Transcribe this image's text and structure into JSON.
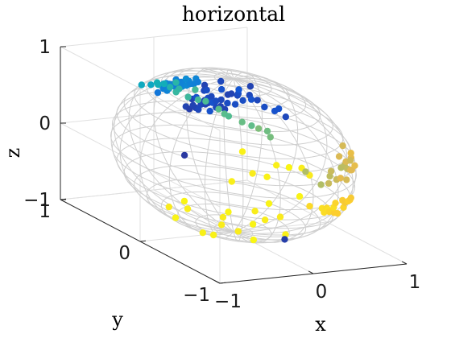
{
  "chart_data": {
    "type": "scatter",
    "title": "horizontal",
    "xlabel": "x",
    "ylabel": "y",
    "zlabel": "z",
    "xlim": [
      -1,
      1
    ],
    "ylim": [
      -1,
      1
    ],
    "zlim": [
      -1,
      1
    ],
    "x_ticks": [
      "−1",
      "0",
      "1"
    ],
    "y_ticks": [
      "−1",
      "0",
      "1"
    ],
    "z_ticks": [
      "−1",
      "0",
      "1"
    ],
    "grid": true,
    "reference_surface": "unit sphere wireframe",
    "colormap": "parula",
    "colors": {
      "sphere": "#cfcfcf",
      "box": "#e0e0e0",
      "axis": "#262626"
    },
    "points": [
      {
        "x": 0.36,
        "y": 0.93,
        "z": 0.1,
        "c": 0.05
      },
      {
        "x": 0.42,
        "y": 0.9,
        "z": 0.12,
        "c": 0.06
      },
      {
        "x": 0.47,
        "y": 0.87,
        "z": 0.15,
        "c": 0.05
      },
      {
        "x": 0.52,
        "y": 0.83,
        "z": 0.19,
        "c": 0.07
      },
      {
        "x": 0.33,
        "y": 0.94,
        "z": 0.05,
        "c": 0.04
      },
      {
        "x": 0.4,
        "y": 0.91,
        "z": 0.05,
        "c": 0.06
      },
      {
        "x": 0.45,
        "y": 0.88,
        "z": 0.13,
        "c": 0.05
      },
      {
        "x": 0.5,
        "y": 0.85,
        "z": 0.16,
        "c": 0.08
      },
      {
        "x": 0.38,
        "y": 0.92,
        "z": 0.07,
        "c": 0.05
      },
      {
        "x": 0.55,
        "y": 0.8,
        "z": 0.22,
        "c": 0.06
      },
      {
        "x": 0.6,
        "y": 0.78,
        "z": 0.18,
        "c": 0.07
      },
      {
        "x": 0.58,
        "y": 0.75,
        "z": 0.31,
        "c": 0.05
      },
      {
        "x": 0.64,
        "y": 0.7,
        "z": 0.32,
        "c": 0.06
      },
      {
        "x": 0.49,
        "y": 0.87,
        "z": 0.04,
        "c": 0.08
      },
      {
        "x": 0.44,
        "y": 0.88,
        "z": 0.18,
        "c": 0.05
      },
      {
        "x": 0.72,
        "y": 0.62,
        "z": 0.3,
        "c": 0.08
      },
      {
        "x": 0.56,
        "y": 0.82,
        "z": 0.12,
        "c": 0.05
      },
      {
        "x": 0.68,
        "y": 0.68,
        "z": 0.26,
        "c": 0.07
      },
      {
        "x": 0.41,
        "y": 0.85,
        "z": 0.33,
        "c": 0.06
      },
      {
        "x": 0.34,
        "y": 0.92,
        "z": 0.19,
        "c": 0.05
      },
      {
        "x": 0.46,
        "y": 0.86,
        "z": 0.22,
        "c": 0.07
      },
      {
        "x": 0.53,
        "y": 0.84,
        "z": 0.1,
        "c": 0.06
      },
      {
        "x": 0.37,
        "y": 0.9,
        "z": 0.22,
        "c": 0.08
      },
      {
        "x": 0.75,
        "y": 0.58,
        "z": 0.31,
        "c": 0.06
      },
      {
        "x": 0.8,
        "y": 0.55,
        "z": 0.23,
        "c": 0.07
      },
      {
        "x": 0.62,
        "y": 0.66,
        "z": 0.42,
        "c": 0.09
      },
      {
        "x": 0.7,
        "y": 0.62,
        "z": 0.36,
        "c": 0.06
      },
      {
        "x": 0.85,
        "y": 0.48,
        "z": 0.21,
        "c": 0.08
      },
      {
        "x": 0.3,
        "y": 0.95,
        "z": 0.08,
        "c": 0.05
      },
      {
        "x": 0.48,
        "y": 0.84,
        "z": 0.25,
        "c": 0.06
      },
      {
        "x": 0.65,
        "y": 0.74,
        "z": 0.18,
        "c": 0.07
      },
      {
        "x": 0.59,
        "y": 0.8,
        "z": 0.09,
        "c": 0.05
      },
      {
        "x": 0.43,
        "y": 0.84,
        "z": 0.34,
        "c": 0.07
      },
      {
        "x": 0.9,
        "y": 0.4,
        "z": 0.17,
        "c": 0.06
      },
      {
        "x": 0.52,
        "y": 0.76,
        "z": 0.38,
        "c": 0.08
      },
      {
        "x": 0.6,
        "y": 0.73,
        "z": 0.33,
        "c": 0.05
      },
      {
        "x": 0.47,
        "y": 0.71,
        "z": 0.52,
        "c": 0.06
      },
      {
        "x": 0.64,
        "y": 0.69,
        "z": 0.35,
        "c": 0.07
      },
      {
        "x": 0.39,
        "y": 0.82,
        "z": 0.42,
        "c": 0.05
      },
      {
        "x": 0.86,
        "y": 0.44,
        "z": 0.26,
        "c": 0.08
      },
      {
        "x": 0.0,
        "y": 0.95,
        "z": 0.3,
        "c": 0.18
      },
      {
        "x": 0.07,
        "y": 0.92,
        "z": 0.38,
        "c": 0.2
      },
      {
        "x": 0.12,
        "y": 0.9,
        "z": 0.42,
        "c": 0.22
      },
      {
        "x": 0.19,
        "y": 0.9,
        "z": 0.39,
        "c": 0.19
      },
      {
        "x": 0.04,
        "y": 0.93,
        "z": 0.36,
        "c": 0.21
      },
      {
        "x": 0.1,
        "y": 0.93,
        "z": 0.35,
        "c": 0.23
      },
      {
        "x": 0.15,
        "y": 0.91,
        "z": 0.38,
        "c": 0.2
      },
      {
        "x": 0.21,
        "y": 0.88,
        "z": 0.42,
        "c": 0.22
      },
      {
        "x": 0.25,
        "y": 0.88,
        "z": 0.4,
        "c": 0.24
      },
      {
        "x": 0.3,
        "y": 0.85,
        "z": 0.43,
        "c": 0.21
      },
      {
        "x": 0.08,
        "y": 0.9,
        "z": 0.43,
        "c": 0.22
      },
      {
        "x": 0.16,
        "y": 0.88,
        "z": 0.45,
        "c": 0.2
      },
      {
        "x": 0.22,
        "y": 0.9,
        "z": 0.38,
        "c": 0.25
      },
      {
        "x": 0.27,
        "y": 0.86,
        "z": 0.43,
        "c": 0.22
      },
      {
        "x": 0.13,
        "y": 0.87,
        "z": 0.47,
        "c": 0.19
      },
      {
        "x": 0.04,
        "y": 0.89,
        "z": 0.45,
        "c": 0.23
      },
      {
        "x": 0.18,
        "y": 0.87,
        "z": 0.46,
        "c": 0.21
      },
      {
        "x": 0.24,
        "y": 0.84,
        "z": 0.48,
        "c": 0.24
      },
      {
        "x": 0.09,
        "y": 0.94,
        "z": 0.32,
        "c": 0.22
      },
      {
        "x": 0.32,
        "y": 0.82,
        "z": 0.47,
        "c": 0.2
      },
      {
        "x": 0.28,
        "y": 0.8,
        "z": 0.53,
        "c": 0.23
      },
      {
        "x": 0.11,
        "y": 0.85,
        "z": 0.51,
        "c": 0.21
      },
      {
        "x": 0.2,
        "y": 0.83,
        "z": 0.52,
        "c": 0.25
      },
      {
        "x": 0.02,
        "y": 0.9,
        "z": 0.44,
        "c": 0.22
      },
      {
        "x": -0.43,
        "y": 0.65,
        "z": 0.62,
        "c": 0.36
      },
      {
        "x": -0.5,
        "y": 0.45,
        "z": 0.74,
        "c": 0.35
      },
      {
        "x": -0.47,
        "y": 0.32,
        "z": 0.82,
        "c": 0.38
      },
      {
        "x": -0.46,
        "y": 0.42,
        "z": 0.78,
        "c": 0.4
      },
      {
        "x": -0.5,
        "y": 0.21,
        "z": 0.84,
        "c": 0.42
      },
      {
        "x": -0.49,
        "y": 0.11,
        "z": 0.87,
        "c": 0.44
      },
      {
        "x": -0.52,
        "y": -0.04,
        "z": 0.85,
        "c": 0.46
      },
      {
        "x": -0.46,
        "y": -0.19,
        "z": 0.87,
        "c": 0.48
      },
      {
        "x": -0.44,
        "y": -0.33,
        "z": 0.84,
        "c": 0.5
      },
      {
        "x": -0.42,
        "y": -0.43,
        "z": 0.8,
        "c": 0.49
      },
      {
        "x": -0.36,
        "y": -0.53,
        "z": 0.77,
        "c": 0.52
      },
      {
        "x": -0.31,
        "y": -0.59,
        "z": 0.75,
        "c": 0.51
      },
      {
        "x": -0.27,
        "y": -0.63,
        "z": 0.73,
        "c": 0.55
      },
      {
        "x": -0.21,
        "y": -0.67,
        "z": 0.71,
        "c": 0.53
      },
      {
        "x": -0.42,
        "y": 0.23,
        "z": 0.88,
        "c": 0.43
      },
      {
        "x": -0.41,
        "y": 0.0,
        "z": 0.91,
        "c": 0.47
      },
      {
        "x": -0.43,
        "y": -0.39,
        "z": 0.81,
        "c": 0.5
      },
      {
        "x": -0.22,
        "y": -0.72,
        "z": 0.66,
        "c": 0.54
      },
      {
        "x": -0.5,
        "y": 0.36,
        "z": 0.79,
        "c": 0.39
      },
      {
        "x": -0.53,
        "y": 0.1,
        "z": 0.84,
        "c": 0.45
      },
      {
        "x": -0.49,
        "y": -0.13,
        "z": 0.86,
        "c": 0.47
      },
      {
        "x": 0.1,
        "y": -0.98,
        "z": 0.14,
        "c": 0.62
      },
      {
        "x": 0.3,
        "y": -0.94,
        "z": 0.16,
        "c": 0.66
      },
      {
        "x": 0.22,
        "y": -0.95,
        "z": 0.22,
        "c": 0.64
      },
      {
        "x": 0.4,
        "y": -0.88,
        "z": 0.27,
        "c": 0.63
      },
      {
        "x": 0.45,
        "y": -0.89,
        "z": 0.11,
        "c": 0.68
      },
      {
        "x": 0.56,
        "y": -0.81,
        "z": 0.18,
        "c": 0.7
      },
      {
        "x": 0.66,
        "y": -0.7,
        "z": 0.27,
        "c": 0.72
      },
      {
        "x": 0.5,
        "y": -0.84,
        "z": 0.22,
        "c": 0.65
      },
      {
        "x": 0.62,
        "y": -0.74,
        "z": 0.26,
        "c": 0.67
      },
      {
        "x": 0.52,
        "y": -0.8,
        "z": 0.29,
        "c": 0.69
      },
      {
        "x": 0.36,
        "y": -0.92,
        "z": 0.16,
        "c": 0.71
      },
      {
        "x": 0.19,
        "y": -0.97,
        "z": 0.14,
        "c": 0.66
      },
      {
        "x": 0.47,
        "y": -0.84,
        "z": 0.27,
        "c": 0.64
      },
      {
        "x": 0.6,
        "y": -0.78,
        "z": 0.16,
        "c": 0.7
      },
      {
        "x": 0.71,
        "y": -0.64,
        "z": 0.29,
        "c": 0.73
      },
      {
        "x": -0.04,
        "y": -0.95,
        "z": 0.31,
        "c": 0.62
      },
      {
        "x": 0.58,
        "y": -0.69,
        "z": 0.43,
        "c": 0.68
      },
      {
        "x": 0.7,
        "y": -0.7,
        "z": 0.16,
        "c": 0.72
      },
      {
        "x": 0.25,
        "y": -0.93,
        "z": 0.27,
        "c": 0.66
      },
      {
        "x": 0.43,
        "y": -0.82,
        "z": 0.38,
        "c": 0.69
      },
      {
        "x": 0.45,
        "y": -0.87,
        "z": -0.2,
        "c": 0.78
      },
      {
        "x": 0.3,
        "y": -0.91,
        "z": -0.29,
        "c": 0.8
      },
      {
        "x": 0.28,
        "y": -0.95,
        "z": -0.14,
        "c": 0.82
      },
      {
        "x": 0.17,
        "y": -0.97,
        "z": -0.18,
        "c": 0.84
      },
      {
        "x": 0.11,
        "y": -0.98,
        "z": -0.17,
        "c": 0.86
      },
      {
        "x": 0.22,
        "y": -0.94,
        "z": -0.25,
        "c": 0.83
      },
      {
        "x": 0.39,
        "y": -0.91,
        "z": -0.14,
        "c": 0.79
      },
      {
        "x": 0.52,
        "y": -0.83,
        "z": -0.21,
        "c": 0.81
      },
      {
        "x": 0.15,
        "y": -0.96,
        "z": -0.24,
        "c": 0.85
      },
      {
        "x": 0.37,
        "y": -0.87,
        "z": -0.33,
        "c": 0.8
      },
      {
        "x": 0.46,
        "y": -0.84,
        "z": -0.28,
        "c": 0.82
      },
      {
        "x": -0.03,
        "y": -0.99,
        "z": -0.12,
        "c": 0.84
      },
      {
        "x": 0.27,
        "y": -0.94,
        "z": -0.2,
        "c": 0.86
      },
      {
        "x": 0.58,
        "y": -0.78,
        "z": -0.23,
        "c": 0.8
      },
      {
        "x": 0.2,
        "y": -0.95,
        "z": -0.22,
        "c": 0.87
      },
      {
        "x": 0.6,
        "y": -0.77,
        "z": -0.21,
        "c": 0.78
      },
      {
        "x": -0.35,
        "y": 0.4,
        "z": -0.85,
        "c": 0.9
      },
      {
        "x": -0.15,
        "y": 0.4,
        "z": -0.9,
        "c": 0.93
      },
      {
        "x": 0.1,
        "y": 0.25,
        "z": -0.96,
        "c": 0.91
      },
      {
        "x": 0.25,
        "y": 0.05,
        "z": -0.96,
        "c": 0.95
      },
      {
        "x": 0.38,
        "y": 0.05,
        "z": -0.92,
        "c": 0.92
      },
      {
        "x": -0.3,
        "y": -0.1,
        "z": -0.95,
        "c": 0.94
      },
      {
        "x": 0.85,
        "y": 0.3,
        "z": -0.43,
        "c": 0.96
      },
      {
        "x": 0.9,
        "y": 0.1,
        "z": -0.43,
        "c": 0.9
      },
      {
        "x": 0.8,
        "y": 0.4,
        "z": -0.45,
        "c": 0.93
      },
      {
        "x": 0.63,
        "y": 0.5,
        "z": -0.59,
        "c": 0.91
      },
      {
        "x": 0.55,
        "y": 0.2,
        "z": -0.81,
        "c": 0.95
      },
      {
        "x": 0.4,
        "y": 0.2,
        "z": -0.89,
        "c": 0.92
      },
      {
        "x": 0.7,
        "y": 0.4,
        "z": -0.59,
        "c": 0.94
      },
      {
        "x": 0.2,
        "y": 0.3,
        "z": -0.93,
        "c": 0.96
      },
      {
        "x": 0.0,
        "y": 0.15,
        "z": -0.99,
        "c": 0.91
      },
      {
        "x": -0.45,
        "y": 0.2,
        "z": -0.87,
        "c": 0.95
      },
      {
        "x": 0.3,
        "y": -0.3,
        "z": -0.91,
        "c": 0.93
      },
      {
        "x": 0.0,
        "y": -0.25,
        "z": -0.97,
        "c": 0.97
      },
      {
        "x": 0.9,
        "y": 0.2,
        "z": -0.39,
        "c": 0.92
      },
      {
        "x": 0.65,
        "y": 0.65,
        "z": -0.39,
        "c": 0.94
      },
      {
        "x": 0.5,
        "y": 0.0,
        "z": -0.87,
        "c": 0.9
      },
      {
        "x": -0.1,
        "y": 0.5,
        "z": -0.86,
        "c": 0.96
      },
      {
        "x": 0.45,
        "y": 0.55,
        "z": -0.7,
        "c": 0.93
      },
      {
        "x": 0.75,
        "y": 0.05,
        "z": -0.66,
        "c": 0.95
      },
      {
        "x": 0.05,
        "y": 0.0,
        "z": -1.0,
        "c": 0.91
      },
      {
        "x": -0.5,
        "y": -0.2,
        "z": -0.84,
        "c": 0.94
      },
      {
        "x": 0.2,
        "y": 0.85,
        "z": -0.49,
        "c": 0.03
      },
      {
        "x": -0.05,
        "y": -0.7,
        "z": -0.71,
        "c": 0.04
      },
      {
        "x": 0.65,
        "y": 0.55,
        "z": 0.52,
        "c": 0.05
      }
    ]
  }
}
